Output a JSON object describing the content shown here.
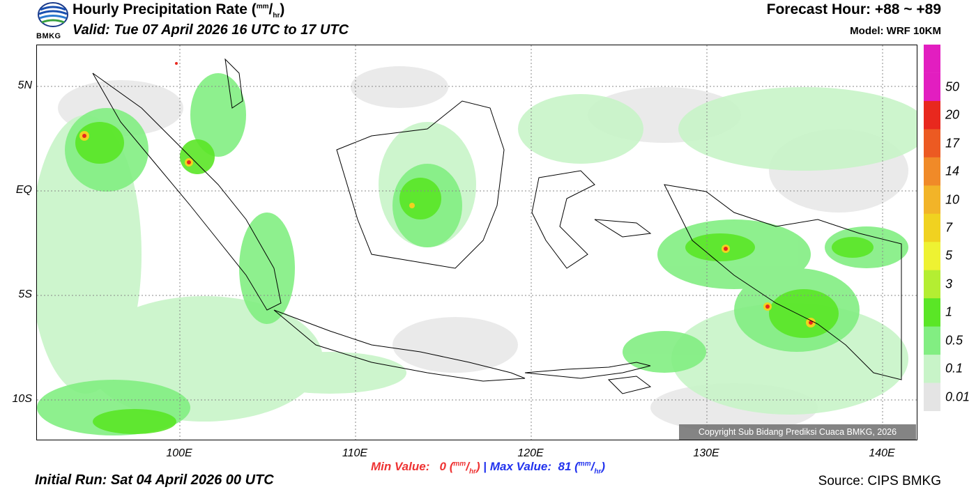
{
  "header": {
    "title_prefix": "Hourly Precipitation Rate (",
    "unit_num": "mm",
    "unit_den": "hr",
    "title_suffix": ")",
    "valid": "Valid: Tue 07 April 2026 16 UTC to 17 UTC",
    "forecast_hour": "Forecast Hour: +88 ~ +89",
    "model": "Model: WRF 10KM"
  },
  "logo": {
    "text": "BMKG",
    "icon": "bmkg-logo-icon"
  },
  "map": {
    "lat_labels": [
      "5N",
      "EQ",
      "5S",
      "10S"
    ],
    "lon_labels": [
      "100E",
      "110E",
      "120E",
      "130E",
      "140E"
    ],
    "copyright": "Copyright Sub Bidang Prediksi Cuaca BMKG, 2026"
  },
  "colorbar": {
    "labels": [
      "50",
      "20",
      "17",
      "14",
      "10",
      "7",
      "5",
      "3",
      "1",
      "0.5",
      "0.1",
      "0.01"
    ],
    "colors": [
      "#e21ec0",
      "#e8281e",
      "#ec5a22",
      "#f08a28",
      "#f2b428",
      "#f0d220",
      "#eef232",
      "#b4ee32",
      "#5ae626",
      "#82ee82",
      "#c8f4c8",
      "#e4e4e4"
    ]
  },
  "stats": {
    "min_label": "Min Value:",
    "min_value": "0",
    "separator": "|",
    "max_label": "Max Value:",
    "max_value": "81"
  },
  "footer": {
    "initial_run": "Initial Run: Sat 04 April 2026 00 UTC",
    "source": "Source: CIPS BMKG"
  }
}
